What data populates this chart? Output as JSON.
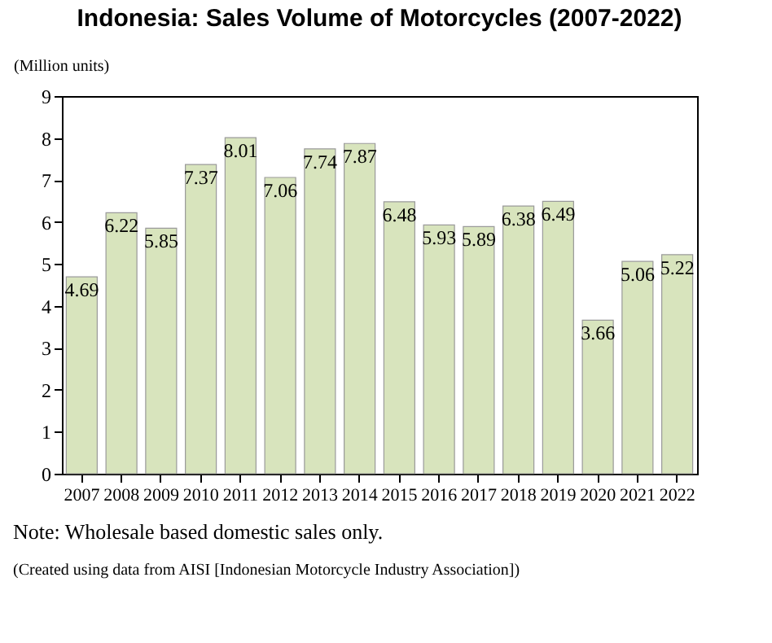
{
  "chart_data": {
    "type": "bar",
    "title": "Indonesia: Sales Volume of Motorcycles (2007-2022)",
    "ylabel": "(Million units)",
    "categories": [
      "2007",
      "2008",
      "2009",
      "2010",
      "2011",
      "2012",
      "2013",
      "2014",
      "2015",
      "2016",
      "2017",
      "2018",
      "2019",
      "2020",
      "2021",
      "2022"
    ],
    "values": [
      4.69,
      6.22,
      5.85,
      7.37,
      8.01,
      7.06,
      7.74,
      7.87,
      6.48,
      5.93,
      5.89,
      6.38,
      6.49,
      3.66,
      5.06,
      5.22
    ],
    "color": "#d8e4bd",
    "ylim": [
      0,
      9
    ],
    "yticks": [
      0,
      1,
      2,
      3,
      4,
      5,
      6,
      7,
      8,
      9
    ],
    "grid": false,
    "data_labels": true,
    "annotations": [
      "Note: Wholesale based domestic sales only.",
      "(Created using data from AISI [Indonesian Motorcycle Industry Association])"
    ]
  }
}
